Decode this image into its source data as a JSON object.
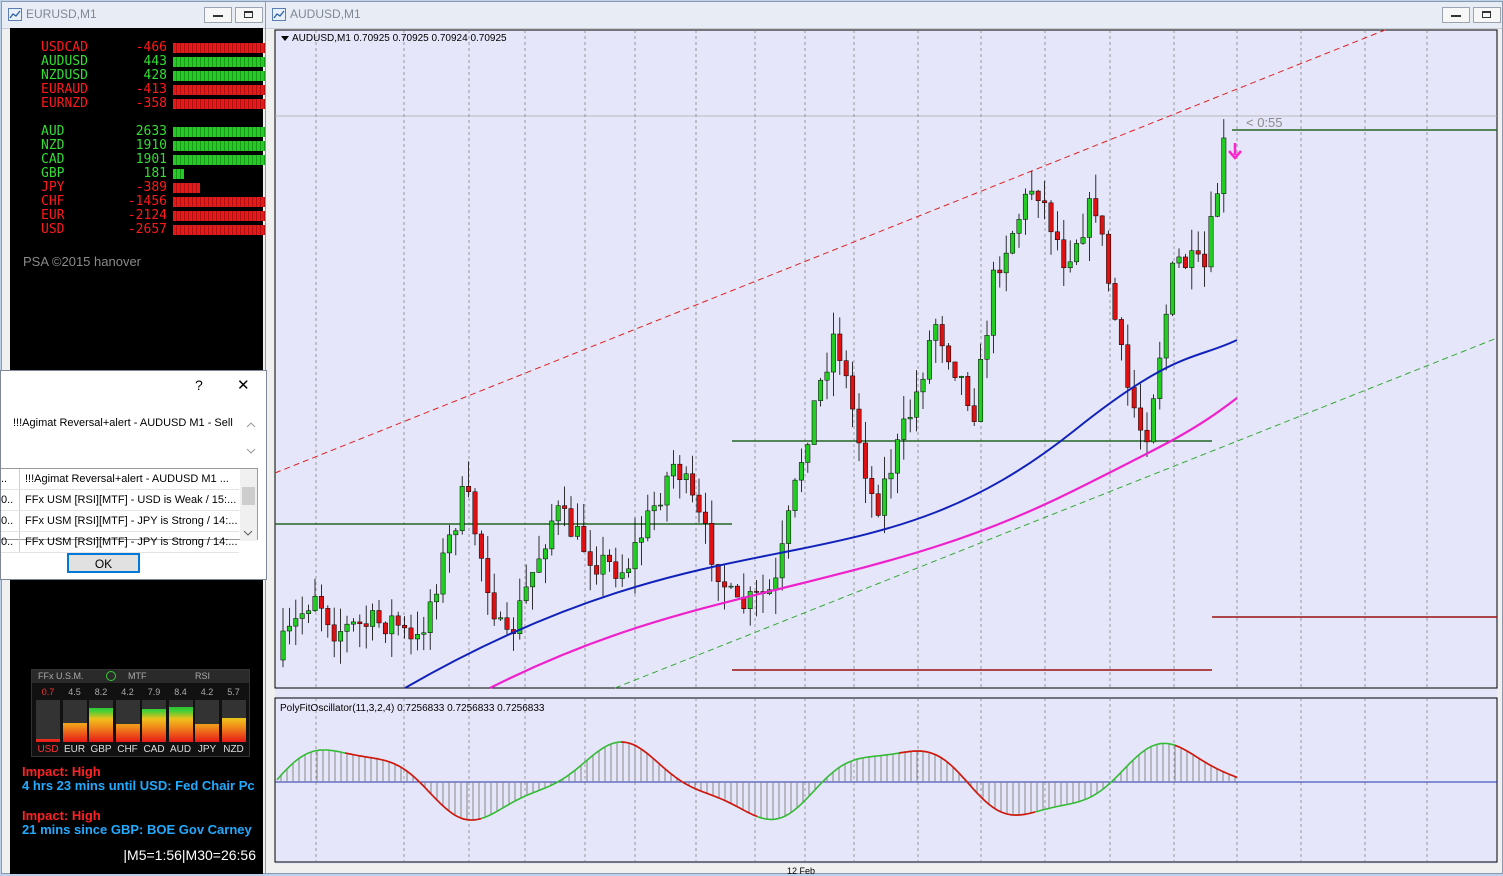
{
  "left_window": {
    "title": "EURUSD,M1"
  },
  "chart_window": {
    "title": "AUDUSD,M1"
  },
  "meter": {
    "pairs": [
      {
        "name": "USDCAD",
        "value": "-466",
        "color": "#ff1a1a",
        "bar_color": "#e81818",
        "strength": 0.86
      },
      {
        "name": "AUDUSD",
        "value": "443",
        "color": "#33dd33",
        "bar_color": "#22cc22",
        "strength": 0.86
      },
      {
        "name": "NZDUSD",
        "value": "428",
        "color": "#33dd33",
        "bar_color": "#22cc22",
        "strength": 0.86
      },
      {
        "name": "EURAUD",
        "value": "-413",
        "color": "#ff1a1a",
        "bar_color": "#e81818",
        "strength": 0.86
      },
      {
        "name": "EURNZD",
        "value": "-358",
        "color": "#ff1a1a",
        "bar_color": "#e81818",
        "strength": 0.86
      }
    ],
    "currencies": [
      {
        "name": "AUD",
        "value": "2633",
        "color": "#33dd33",
        "bar_color": "#22cc22",
        "strength": 0.86
      },
      {
        "name": "NZD",
        "value": "1910",
        "color": "#33dd33",
        "bar_color": "#22cc22",
        "strength": 0.86
      },
      {
        "name": "CAD",
        "value": "1901",
        "color": "#33dd33",
        "bar_color": "#22cc22",
        "strength": 0.86
      },
      {
        "name": "GBP",
        "value": "181",
        "color": "#33dd33",
        "bar_color": "#22cc22",
        "strength": 0.1
      },
      {
        "name": "JPY",
        "value": "-389",
        "color": "#ff1a1a",
        "bar_color": "#e81818",
        "strength": 0.25
      },
      {
        "name": "CHF",
        "value": "-1456",
        "color": "#ff1a1a",
        "bar_color": "#e81818",
        "strength": 0.86
      },
      {
        "name": "EUR",
        "value": "-2124",
        "color": "#ff1a1a",
        "bar_color": "#e81818",
        "strength": 0.86
      },
      {
        "name": "USD",
        "value": "-2657",
        "color": "#ff1a1a",
        "bar_color": "#e81818",
        "strength": 0.86
      }
    ],
    "copyright": "PSA ©2015 hanover"
  },
  "usm": {
    "title": "FFx U.S.M.",
    "mtf": "MTF",
    "rsi": "RSI",
    "values": [
      "0.7",
      "4.5",
      "8.2",
      "4.2",
      "7.9",
      "8.4",
      "4.2",
      "5.7"
    ],
    "levels": [
      0.07,
      0.45,
      0.82,
      0.42,
      0.79,
      0.84,
      0.42,
      0.57
    ],
    "labels": [
      "USD",
      "EUR",
      "GBP",
      "CHF",
      "CAD",
      "AUD",
      "JPY",
      "NZD"
    ]
  },
  "news": [
    {
      "impact": "Impact: High",
      "text": "4 hrs 23 mins until USD: Fed Chair Pc"
    },
    {
      "impact": "Impact: High",
      "text": "21 mins since GBP: BOE Gov Carney"
    }
  ],
  "timer": "|M5=1:56|M30=26:56",
  "dialog": {
    "help": "?",
    "close": "✕",
    "message": "!!!Agimat Reversal+alert - AUDUSD  M1 - Sell",
    "alerts": [
      {
        "lead": "..",
        "text": "!!!Agimat Reversal+alert - AUDUSD  M1 ..."
      },
      {
        "lead": "0..",
        "text": "FFx USM [RSI][MTF] - USD is Weak / 15:..."
      },
      {
        "lead": "0..",
        "text": "FFx USM [RSI][MTF] - JPY is Strong / 14:..."
      },
      {
        "lead": "0..",
        "text": "FFx USM [RSI][MTF] - JPY is Strong / 14:..."
      }
    ],
    "ok": "OK"
  },
  "chart": {
    "header": "AUDUSD,M1  0.70925 0.70925 0.70924 0.70925",
    "countdown": "< 0:55",
    "oscillator_label": "PolyFitOscillator(11,3,2,4) 0.7256833 0.7256833 0.7256833",
    "date_label": "12 Feb",
    "colors": {
      "up": "#22cc22",
      "down": "#dd1111",
      "ma_fast": "#1122bb",
      "ma_slow": "#ee22cc"
    }
  }
}
